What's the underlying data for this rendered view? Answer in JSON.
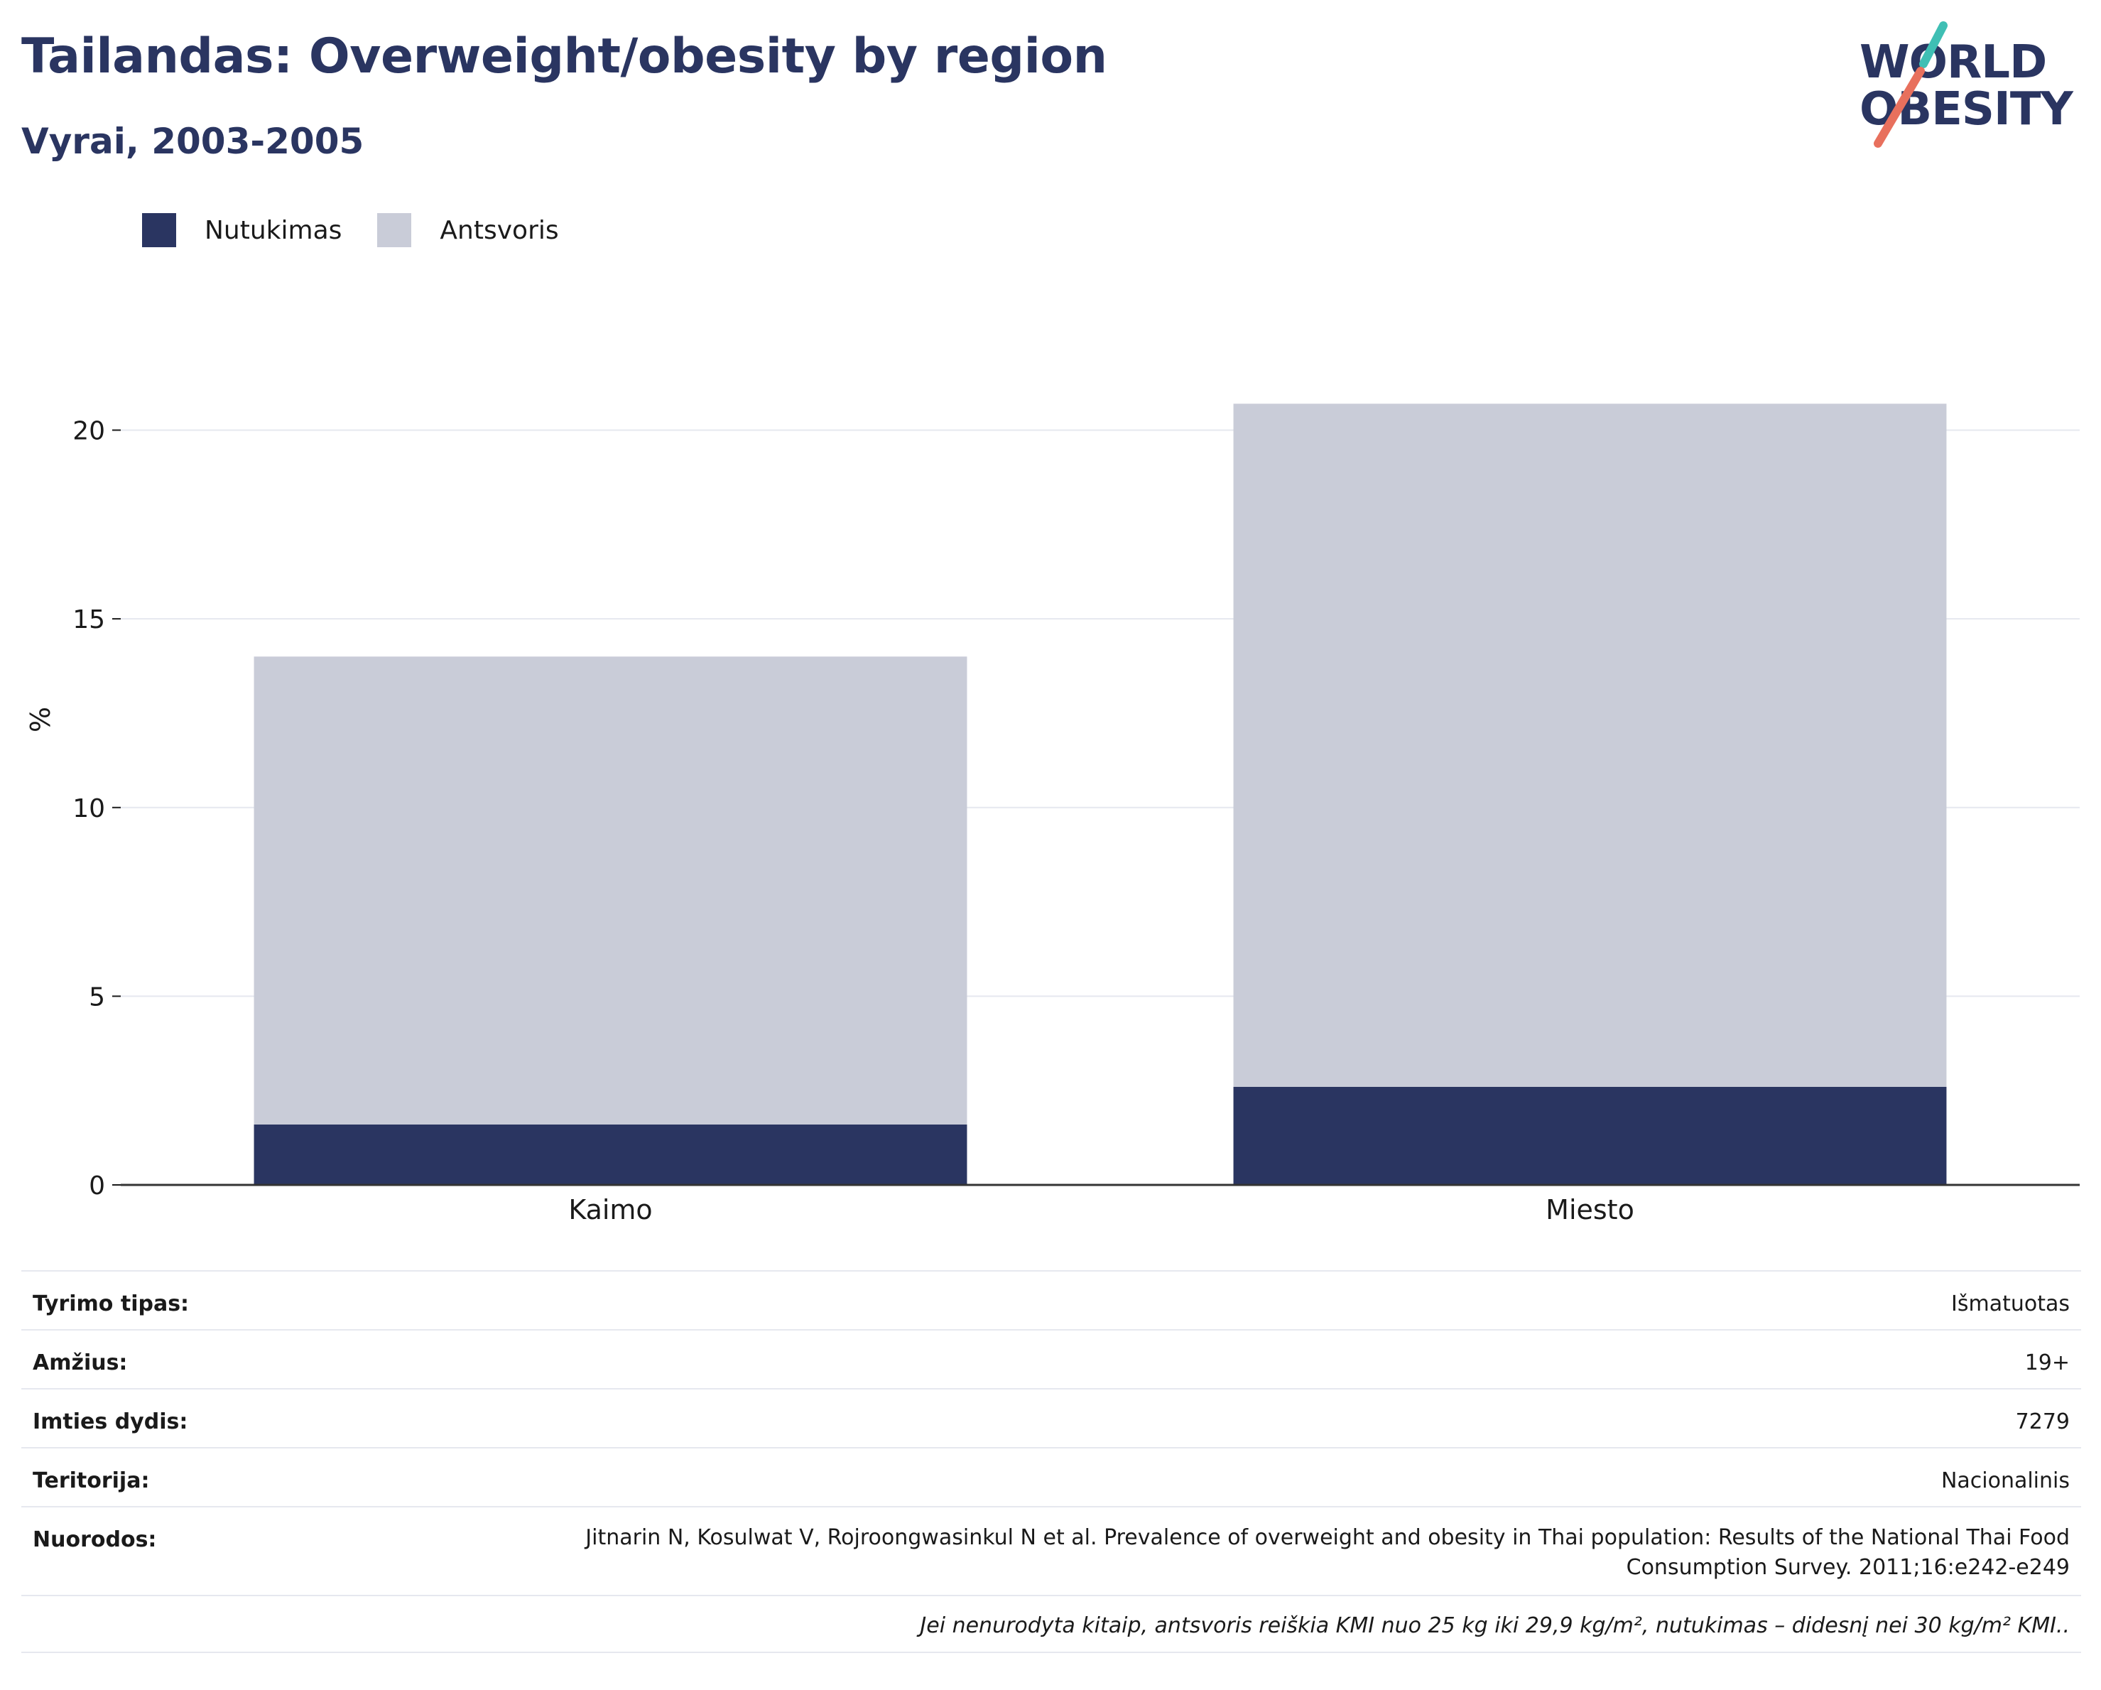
{
  "header": {
    "title": "Tailandas: Overweight/obesity by region",
    "subtitle": "Vyrai, 2003-2005"
  },
  "logo": {
    "line1": "WORLD",
    "line2": "OBESITY",
    "colors": {
      "text": "#2a3561",
      "slash_top": "#3fbfb4",
      "slash_bottom": "#e8705d"
    }
  },
  "legend": [
    {
      "label": "Nutukimas",
      "color": "#2a3561"
    },
    {
      "label": "Antsvoris",
      "color": "#c9ccd8"
    }
  ],
  "chart_data": {
    "type": "bar",
    "stacked": true,
    "categories": [
      "Kaimo",
      "Miesto"
    ],
    "series": [
      {
        "name": "Nutukimas",
        "values": [
          1.6,
          2.6
        ],
        "color": "#2a3561"
      },
      {
        "name": "Antsvoris",
        "values": [
          12.4,
          18.1
        ],
        "color": "#c9ccd8"
      }
    ],
    "ylabel": "%",
    "xlabel": "",
    "ylim": [
      0,
      22.4
    ],
    "yticks": [
      0,
      5,
      10,
      15,
      20
    ],
    "grid": true,
    "legend_position": "top-left"
  },
  "info": {
    "rows": [
      {
        "key": "Tyrimo tipas:",
        "value": "Išmatuotas"
      },
      {
        "key": "Amžius:",
        "value": "19+"
      },
      {
        "key": "Imties dydis:",
        "value": "7279"
      },
      {
        "key": "Teritorija:",
        "value": "Nacionalinis"
      },
      {
        "key": "Nuorodos:",
        "value": "Jitnarin N, Kosulwat V, Rojroongwasinkul N et al. Prevalence of overweight and obesity in Thai population: Results of the National Thai Food Consumption Survey. 2011;16:e242-e249"
      }
    ],
    "footnote": "Jei nenurodyta kitaip, antsvoris reiškia KMI nuo 25 kg iki 29,9 kg/m², nutukimas – didesnį nei 30 kg/m² KMI.."
  }
}
